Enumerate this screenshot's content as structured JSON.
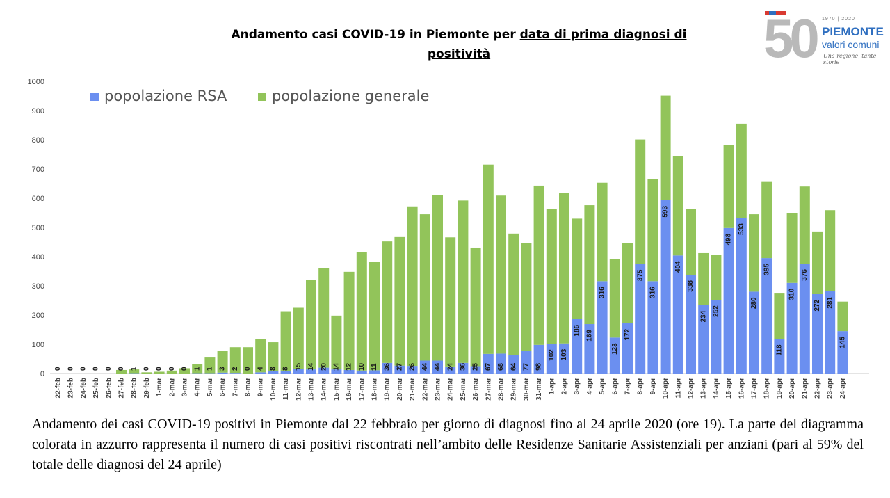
{
  "title": {
    "line1_plain": "Andamento casi COVID-19 in Piemonte per ",
    "line1_underlined": "data di prima diagnosi di",
    "line2_underlined": "positività"
  },
  "logo": {
    "number": "50",
    "years": "1970 | 2020",
    "name": "PIEMONTE",
    "subtitle": "valori comuni",
    "motto": "Una regione, tante storie"
  },
  "caption": "Andamento dei casi COVID-19 positivi in Piemonte dal 22 febbraio per giorno di diagnosi fino al 24 aprile 2020 (ore 19). La parte del diagramma colorata in azzurro rappresenta il numero di casi positivi riscontrati nell’ambito delle Residenze Sanitarie Assistenziali per anziani (pari al 59% del totale delle diagnosi del 24 aprile)",
  "chart_data": {
    "type": "bar",
    "stacked": true,
    "ylim": [
      0,
      1000
    ],
    "yticks": [
      0,
      100,
      200,
      300,
      400,
      500,
      600,
      700,
      800,
      900,
      1000
    ],
    "grid": false,
    "legend_position": "top-left",
    "colors": {
      "rsa": "#6b8ff0",
      "generale": "#92c45a"
    },
    "categories": [
      "22-feb",
      "23-feb",
      "24-feb",
      "25-feb",
      "26-feb",
      "27-feb",
      "28-feb",
      "29-feb",
      "1-mar",
      "2-mar",
      "3-mar",
      "4-mar",
      "5-mar",
      "6-mar",
      "7-mar",
      "8-mar",
      "9-mar",
      "10-mar",
      "11-mar",
      "12-mar",
      "13-mar",
      "14-mar",
      "15-mar",
      "16-mar",
      "17-mar",
      "18-mar",
      "19-mar",
      "20-mar",
      "21-mar",
      "22-mar",
      "23-mar",
      "24-mar",
      "25-mar",
      "26-mar",
      "27-mar",
      "28-mar",
      "29-mar",
      "30-mar",
      "31-mar",
      "1-apr",
      "2-apr",
      "3-apr",
      "4-apr",
      "5-apr",
      "6-apr",
      "7-apr",
      "8-apr",
      "9-apr",
      "10-apr",
      "11-apr",
      "12-apr",
      "13-apr",
      "14-apr",
      "15-apr",
      "16-apr",
      "17-apr",
      "18-apr",
      "19-apr",
      "20-apr",
      "21-apr",
      "22-apr",
      "23-apr",
      "24-apr"
    ],
    "totals": [
      0,
      0,
      0,
      0,
      0,
      12,
      14,
      4,
      6,
      10,
      18,
      32,
      57,
      78,
      90,
      90,
      117,
      107,
      213,
      225,
      320,
      360,
      198,
      348,
      415,
      383,
      452,
      467,
      572,
      545,
      610,
      466,
      592,
      431,
      715,
      609,
      479,
      446,
      643,
      562,
      617,
      530,
      576,
      653,
      391,
      446,
      801,
      666,
      951,
      744,
      563,
      412,
      406,
      781,
      855,
      545,
      658,
      276,
      550,
      640,
      486,
      559,
      246
    ],
    "series": [
      {
        "name": "popolazione RSA",
        "values": [
          0,
          0,
          0,
          0,
          0,
          0,
          1,
          0,
          0,
          0,
          0,
          1,
          1,
          3,
          2,
          0,
          4,
          8,
          8,
          15,
          14,
          20,
          14,
          12,
          10,
          11,
          36,
          27,
          26,
          44,
          44,
          24,
          36,
          25,
          67,
          68,
          64,
          77,
          98,
          102,
          103,
          186,
          169,
          316,
          123,
          172,
          375,
          316,
          593,
          404,
          338,
          234,
          252,
          498,
          533,
          280,
          395,
          118,
          310,
          376,
          272,
          281,
          145
        ]
      },
      {
        "name": "popolazione generale",
        "values": [
          0,
          0,
          0,
          0,
          0,
          12,
          13,
          4,
          6,
          10,
          18,
          31,
          56,
          75,
          88,
          90,
          113,
          99,
          205,
          210,
          306,
          340,
          184,
          336,
          405,
          372,
          416,
          440,
          546,
          501,
          566,
          442,
          556,
          406,
          648,
          541,
          415,
          369,
          545,
          460,
          514,
          344,
          407,
          337,
          268,
          274,
          426,
          350,
          358,
          340,
          225,
          178,
          154,
          283,
          322,
          265,
          263,
          158,
          240,
          264,
          214,
          278,
          101
        ]
      }
    ]
  }
}
